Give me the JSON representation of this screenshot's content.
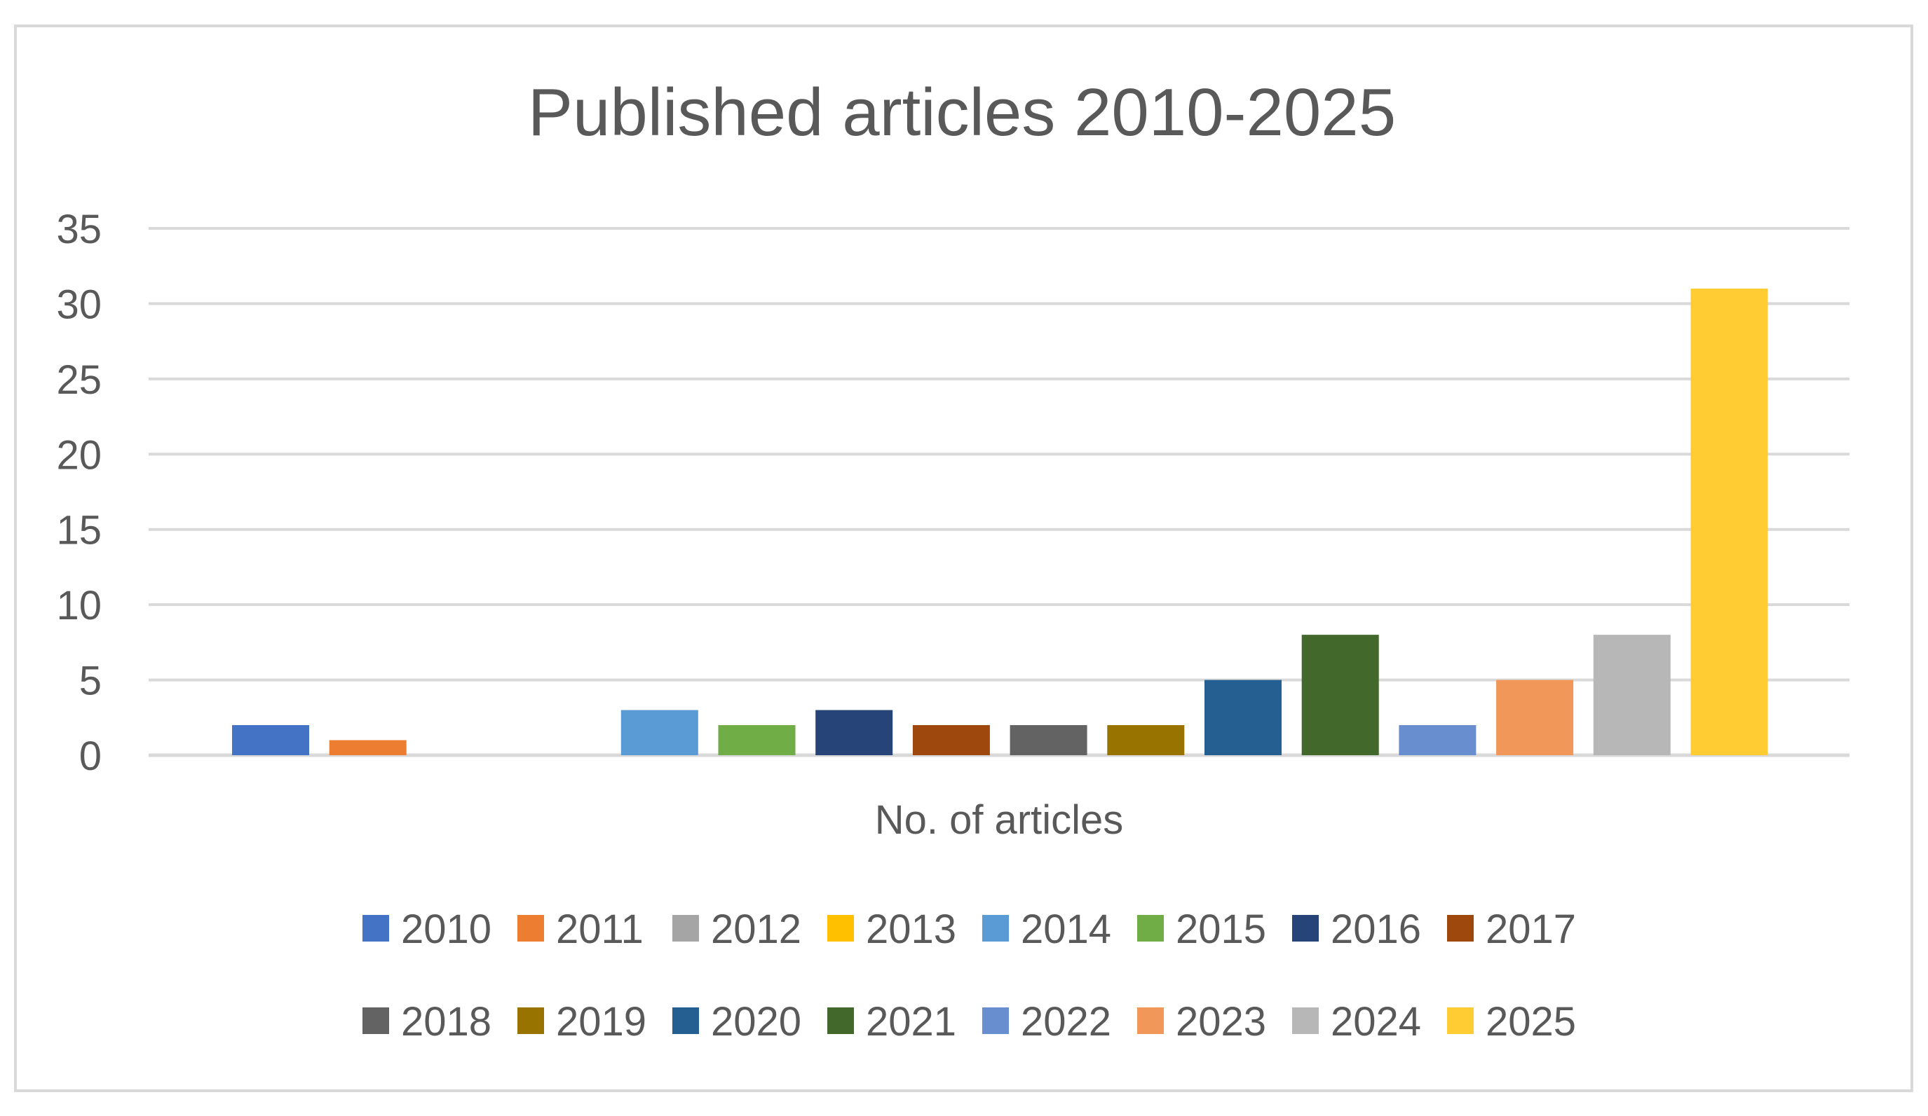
{
  "chart_data": {
    "type": "bar",
    "title": "Published articles 2010-2025",
    "xlabel": "No. of articles",
    "ylabel": "",
    "ylim": [
      0,
      35
    ],
    "yticks": [
      0,
      5,
      10,
      15,
      20,
      25,
      30,
      35
    ],
    "grid": true,
    "legend_position": "bottom",
    "categories": [
      "No. of articles"
    ],
    "series": [
      {
        "name": "2010",
        "values": [
          2
        ],
        "color": "#4472C4"
      },
      {
        "name": "2011",
        "values": [
          1
        ],
        "color": "#ED7D31"
      },
      {
        "name": "2012",
        "values": [
          0
        ],
        "color": "#A5A5A5"
      },
      {
        "name": "2013",
        "values": [
          0
        ],
        "color": "#FFC000"
      },
      {
        "name": "2014",
        "values": [
          3
        ],
        "color": "#5B9BD5"
      },
      {
        "name": "2015",
        "values": [
          2
        ],
        "color": "#70AD47"
      },
      {
        "name": "2016",
        "values": [
          3
        ],
        "color": "#264478"
      },
      {
        "name": "2017",
        "values": [
          2
        ],
        "color": "#9E480E"
      },
      {
        "name": "2018",
        "values": [
          2
        ],
        "color": "#636363"
      },
      {
        "name": "2019",
        "values": [
          2
        ],
        "color": "#997300"
      },
      {
        "name": "2020",
        "values": [
          5
        ],
        "color": "#255E91"
      },
      {
        "name": "2021",
        "values": [
          8
        ],
        "color": "#43682B"
      },
      {
        "name": "2022",
        "values": [
          2
        ],
        "color": "#698ED0"
      },
      {
        "name": "2023",
        "values": [
          5
        ],
        "color": "#F1975A"
      },
      {
        "name": "2024",
        "values": [
          8
        ],
        "color": "#B7B7B7"
      },
      {
        "name": "2025",
        "values": [
          31
        ],
        "color": "#FFCD33"
      }
    ]
  }
}
